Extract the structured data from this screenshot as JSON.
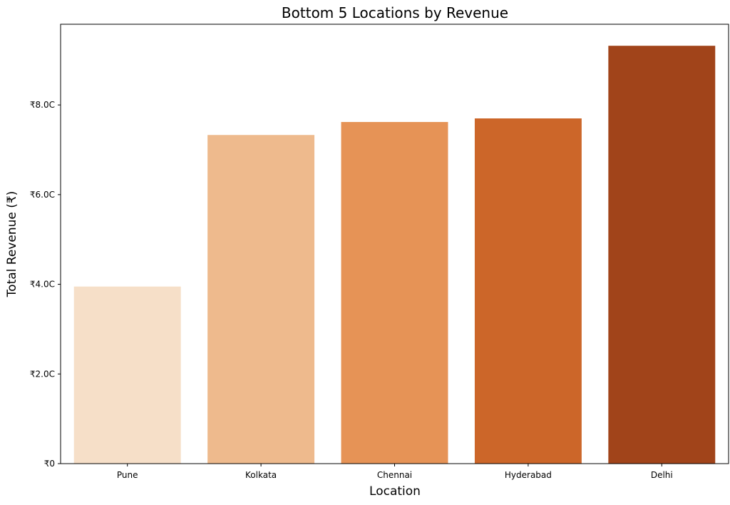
{
  "chart_data": {
    "type": "bar",
    "title": "Bottom 5 Locations by Revenue",
    "xlabel": "Location",
    "ylabel": "Total Revenue (₹)",
    "categories": [
      "Pune",
      "Kolkata",
      "Chennai",
      "Hyderabad",
      "Delhi"
    ],
    "values": [
      3.95,
      7.33,
      7.62,
      7.7,
      9.32
    ],
    "value_unit": "₹ Crore",
    "colors": [
      "#f6dfc8",
      "#eeba8d",
      "#e69356",
      "#cc6629",
      "#a1441a"
    ],
    "ylim": [
      0,
      9.8
    ],
    "yticks": [
      {
        "value": 0,
        "label": "₹0"
      },
      {
        "value": 2,
        "label": "₹2.0C"
      },
      {
        "value": 4,
        "label": "₹4.0C"
      },
      {
        "value": 6,
        "label": "₹6.0C"
      },
      {
        "value": 8,
        "label": "₹8.0C"
      }
    ],
    "grid": false,
    "legend": "none"
  }
}
